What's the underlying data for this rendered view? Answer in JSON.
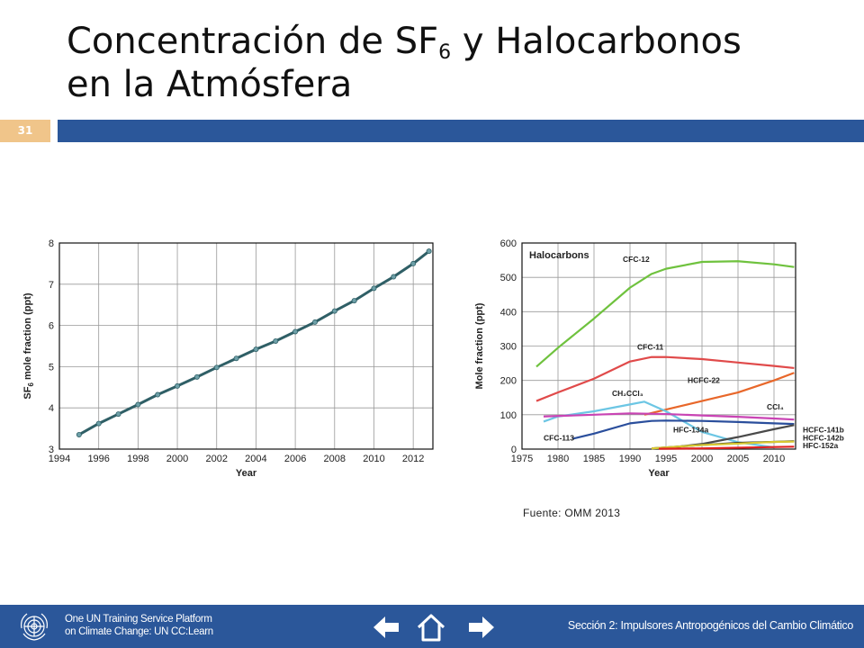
{
  "slide": {
    "title_line1_main": "Concentración de SF",
    "title_line1_sub": "6",
    "title_line1_rest": " y Halocarbonos",
    "title_line2": "en la Atmósfera",
    "number": "31"
  },
  "source": "Fuente: OMM 2013",
  "footer": {
    "platform_line1": "One UN Training Service Platform",
    "platform_line2": "on Climate Change: UN CC:Learn",
    "section": "Sección 2: Impulsores Antropogénicos del Cambio Climático",
    "nav": [
      "arrow-left-icon",
      "home-icon",
      "arrow-right-icon"
    ]
  },
  "colors": {
    "accent_bar": "#2b579a",
    "slide_number_bg": "#f0c58a"
  },
  "chart_data": [
    {
      "type": "scatter",
      "title": "",
      "xlabel": "Year",
      "ylabel_main": "SF",
      "ylabel_sub": "6",
      "ylabel_rest": " mole fraction (ppt)",
      "xlim": [
        1994,
        2013
      ],
      "ylim": [
        3,
        8
      ],
      "xticks": [
        "1994",
        "1996",
        "1998",
        "2000",
        "2002",
        "2004",
        "2006",
        "2008",
        "2010",
        "2012"
      ],
      "yticks": [
        "3",
        "4",
        "5",
        "6",
        "7",
        "8"
      ],
      "grid": true,
      "x": [
        1995.0,
        1996.0,
        1997.0,
        1998.0,
        1999.0,
        2000.0,
        2001.0,
        2002.0,
        2003.0,
        2004.0,
        2005.0,
        2006.0,
        2007.0,
        2008.0,
        2009.0,
        2010.0,
        2011.0,
        2012.0,
        2012.8
      ],
      "values": [
        3.35,
        3.62,
        3.85,
        4.08,
        4.32,
        4.53,
        4.75,
        4.98,
        5.2,
        5.42,
        5.62,
        5.85,
        6.08,
        6.35,
        6.6,
        6.9,
        7.18,
        7.5,
        7.8
      ]
    },
    {
      "type": "line",
      "title": "Halocarbons",
      "xlabel": "Year",
      "ylabel": "Mole fraction (ppt)",
      "xlim": [
        1975,
        2013
      ],
      "ylim": [
        0,
        600
      ],
      "xticks": [
        "1975",
        "1980",
        "1985",
        "1990",
        "1995",
        "2000",
        "2005",
        "2010"
      ],
      "yticks": [
        "0",
        "100",
        "200",
        "300",
        "400",
        "500",
        "600"
      ],
      "grid": true,
      "series": [
        {
          "name": "CFC-12",
          "color": "#6fc23e",
          "x": [
            1977,
            1980,
            1985,
            1990,
            1993,
            1995,
            2000,
            2005,
            2010,
            2012.8
          ],
          "values": [
            240,
            295,
            380,
            470,
            510,
            525,
            545,
            547,
            538,
            530
          ]
        },
        {
          "name": "CFC-11",
          "color": "#e04a4a",
          "x": [
            1977,
            1980,
            1985,
            1990,
            1993,
            1995,
            2000,
            2005,
            2010,
            2012.8
          ],
          "values": [
            140,
            165,
            205,
            255,
            268,
            268,
            262,
            252,
            242,
            236
          ]
        },
        {
          "name": "HCFC-22",
          "color": "#e8672a",
          "x": [
            1992,
            1995,
            2000,
            2005,
            2010,
            2012.8
          ],
          "values": [
            100,
            115,
            140,
            165,
            200,
            222
          ]
        },
        {
          "name": "CH₂CCl₃",
          "color": "#6cc6e4",
          "x": [
            1978,
            1980,
            1985,
            1990,
            1992,
            1995,
            2000,
            2005,
            2010
          ],
          "values": [
            80,
            95,
            110,
            130,
            138,
            110,
            50,
            20,
            5
          ]
        },
        {
          "name": "CCl₄",
          "color": "#c944b4",
          "x": [
            1978,
            1985,
            1990,
            1995,
            2000,
            2005,
            2010,
            2012.8
          ],
          "values": [
            95,
            100,
            104,
            102,
            98,
            94,
            89,
            86
          ]
        },
        {
          "name": "CFC-113",
          "color": "#2a4e9c",
          "x": [
            1982,
            1985,
            1990,
            1993,
            1995,
            2000,
            2005,
            2010,
            2012.8
          ],
          "values": [
            30,
            45,
            75,
            82,
            83,
            82,
            79,
            75,
            73
          ]
        },
        {
          "name": "HFC-134a",
          "color": "#4a4a4a",
          "x": [
            1995,
            2000,
            2005,
            2010,
            2012.8
          ],
          "values": [
            3,
            15,
            35,
            58,
            70
          ]
        },
        {
          "name": "HCFC-141b",
          "color": "#222222",
          "x": [
            1993,
            2000,
            2005,
            2010,
            2012.8
          ],
          "values": [
            2,
            12,
            18,
            21,
            23
          ]
        },
        {
          "name": "HCFC-142b",
          "color": "#d8c830",
          "x": [
            1993,
            2000,
            2005,
            2010,
            2012.8
          ],
          "values": [
            2,
            12,
            16,
            21,
            22
          ]
        },
        {
          "name": "HFC-152a",
          "color": "#e02020",
          "x": [
            1994,
            2000,
            2005,
            2010,
            2012.8
          ],
          "values": [
            1,
            2,
            4,
            6,
            7
          ]
        }
      ]
    }
  ]
}
